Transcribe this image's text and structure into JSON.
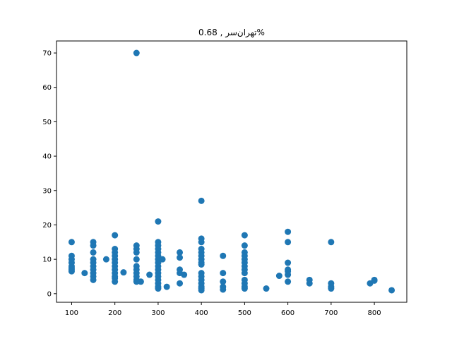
{
  "chart_data": {
    "type": "scatter",
    "title": "تهران‌سر , 0.68%",
    "xlabel": "",
    "ylabel": "",
    "xlim": [
      65,
      875
    ],
    "ylim": [
      -2.5,
      73.5
    ],
    "xticks": [
      100,
      200,
      300,
      400,
      500,
      600,
      700,
      800
    ],
    "yticks": [
      0,
      10,
      20,
      30,
      40,
      50,
      60,
      70
    ],
    "grid": false,
    "marker_color": "#1f77b4",
    "points": [
      [
        100,
        15
      ],
      [
        100,
        11
      ],
      [
        100,
        10
      ],
      [
        100,
        9
      ],
      [
        100,
        8
      ],
      [
        100,
        7.5
      ],
      [
        100,
        7
      ],
      [
        100,
        6.5
      ],
      [
        130,
        6
      ],
      [
        150,
        15
      ],
      [
        150,
        14
      ],
      [
        150,
        12
      ],
      [
        150,
        10
      ],
      [
        150,
        9
      ],
      [
        150,
        8
      ],
      [
        150,
        7
      ],
      [
        150,
        6
      ],
      [
        150,
        5
      ],
      [
        150,
        4
      ],
      [
        180,
        10
      ],
      [
        200,
        17
      ],
      [
        200,
        13
      ],
      [
        200,
        12
      ],
      [
        200,
        11
      ],
      [
        200,
        10
      ],
      [
        200,
        9
      ],
      [
        200,
        8
      ],
      [
        200,
        7
      ],
      [
        200,
        6
      ],
      [
        200,
        5
      ],
      [
        200,
        4.5
      ],
      [
        200,
        3.5
      ],
      [
        220,
        6.2
      ],
      [
        250,
        70
      ],
      [
        250,
        14
      ],
      [
        250,
        13
      ],
      [
        250,
        12
      ],
      [
        250,
        10
      ],
      [
        250,
        8
      ],
      [
        250,
        7
      ],
      [
        250,
        6
      ],
      [
        250,
        5
      ],
      [
        250,
        4
      ],
      [
        250,
        3.5
      ],
      [
        260,
        3.5
      ],
      [
        280,
        5.5
      ],
      [
        300,
        21
      ],
      [
        300,
        15
      ],
      [
        300,
        14
      ],
      [
        300,
        13
      ],
      [
        300,
        12
      ],
      [
        300,
        11
      ],
      [
        300,
        10
      ],
      [
        300,
        9
      ],
      [
        300,
        8
      ],
      [
        300,
        7
      ],
      [
        300,
        6
      ],
      [
        300,
        5
      ],
      [
        300,
        4
      ],
      [
        300,
        3
      ],
      [
        300,
        2
      ],
      [
        300,
        1.5
      ],
      [
        310,
        10
      ],
      [
        320,
        2
      ],
      [
        350,
        12
      ],
      [
        350,
        10.5
      ],
      [
        350,
        7
      ],
      [
        350,
        6
      ],
      [
        350,
        3
      ],
      [
        360,
        5.5
      ],
      [
        400,
        27
      ],
      [
        400,
        16
      ],
      [
        400,
        15
      ],
      [
        400,
        13
      ],
      [
        400,
        12
      ],
      [
        400,
        11
      ],
      [
        400,
        10
      ],
      [
        400,
        9
      ],
      [
        400,
        8.5
      ],
      [
        400,
        6
      ],
      [
        400,
        5
      ],
      [
        400,
        4
      ],
      [
        400,
        3
      ],
      [
        400,
        2
      ],
      [
        400,
        1.5
      ],
      [
        400,
        1
      ],
      [
        450,
        11
      ],
      [
        450,
        6
      ],
      [
        450,
        3.5
      ],
      [
        450,
        2
      ],
      [
        450,
        1.2
      ],
      [
        500,
        17
      ],
      [
        500,
        14
      ],
      [
        500,
        12
      ],
      [
        500,
        11
      ],
      [
        500,
        10
      ],
      [
        500,
        9
      ],
      [
        500,
        8
      ],
      [
        500,
        7
      ],
      [
        500,
        6
      ],
      [
        500,
        4
      ],
      [
        500,
        3
      ],
      [
        500,
        2
      ],
      [
        500,
        1.5
      ],
      [
        550,
        1.5
      ],
      [
        580,
        5.2
      ],
      [
        600,
        18
      ],
      [
        600,
        15
      ],
      [
        600,
        9
      ],
      [
        600,
        7
      ],
      [
        600,
        6.5
      ],
      [
        600,
        5.5
      ],
      [
        600,
        3.5
      ],
      [
        650,
        4
      ],
      [
        650,
        3
      ],
      [
        700,
        15
      ],
      [
        700,
        3
      ],
      [
        700,
        2
      ],
      [
        700,
        1.5
      ],
      [
        790,
        3
      ],
      [
        800,
        4
      ],
      [
        800,
        3.8
      ],
      [
        840,
        1
      ]
    ]
  }
}
